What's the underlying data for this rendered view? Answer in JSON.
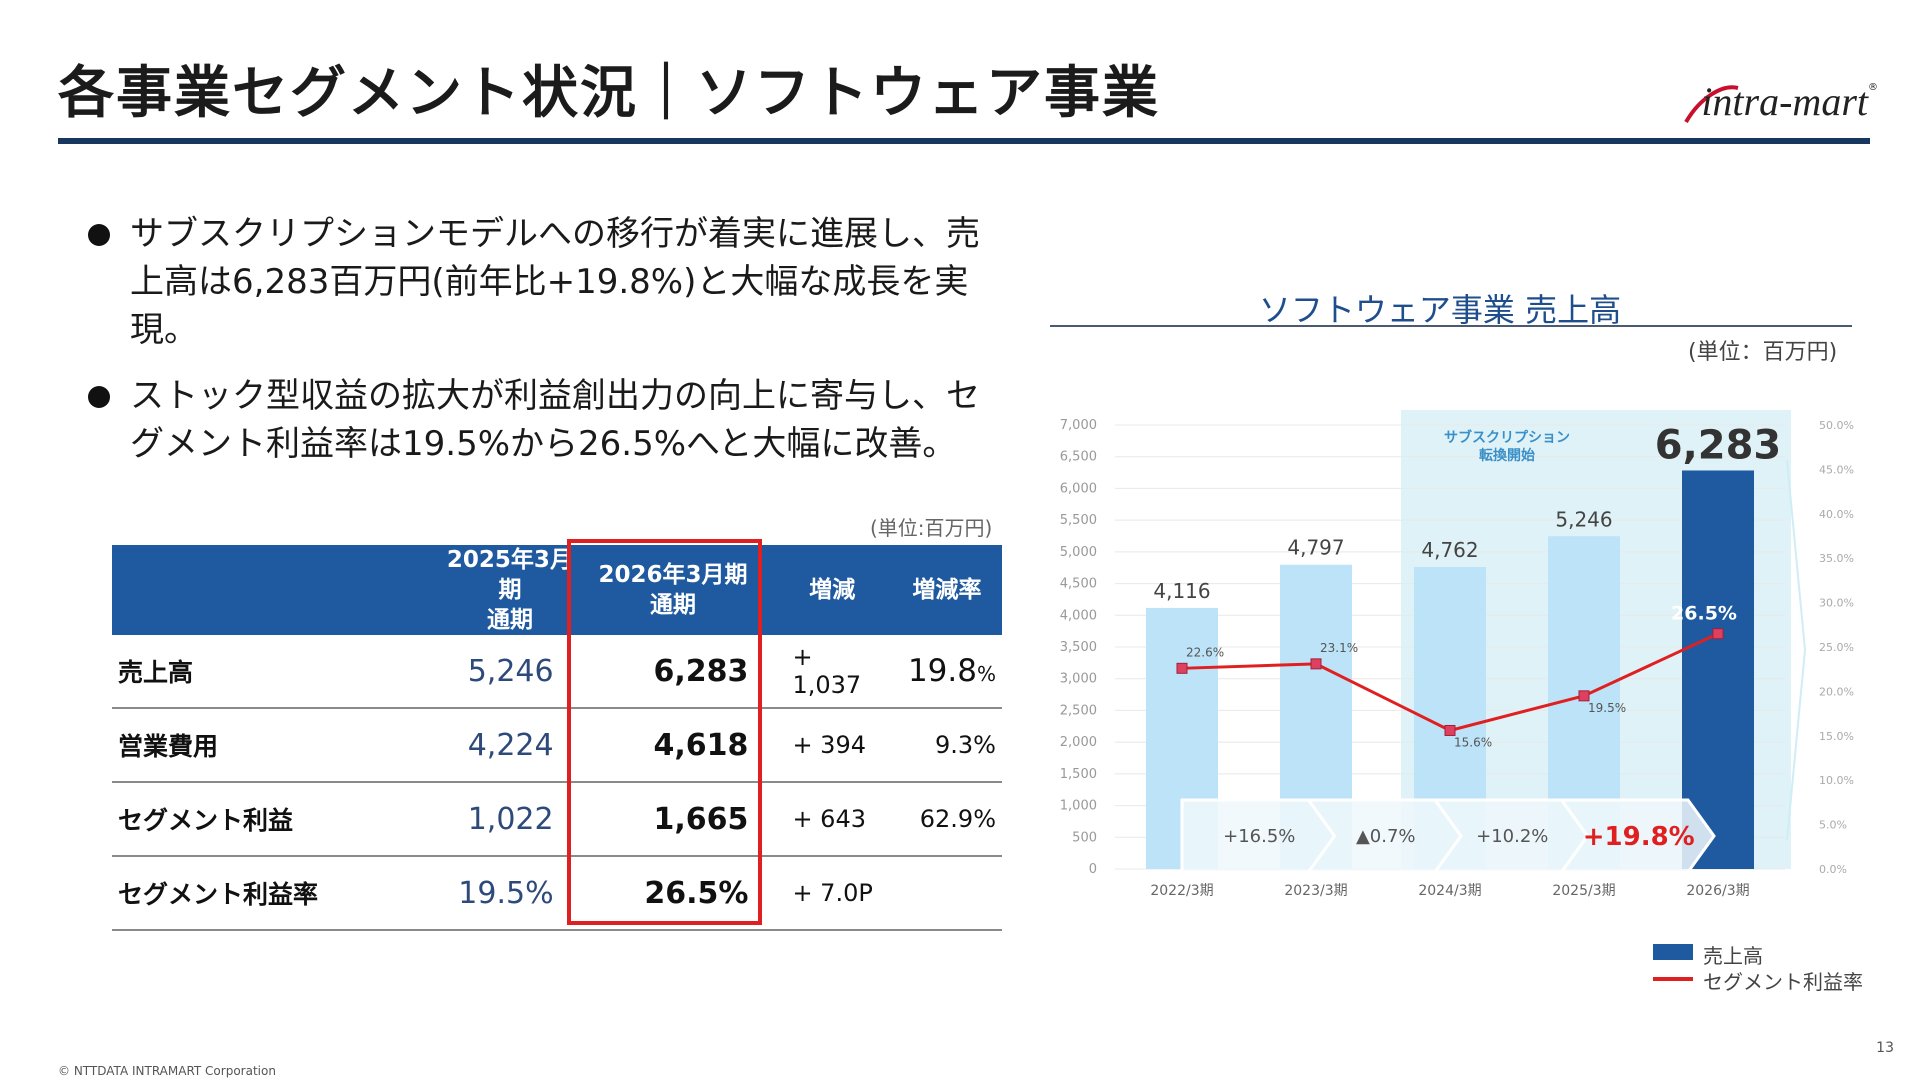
{
  "title": "各事業セグメント状況｜ソフトウェア事業",
  "logo": {
    "text": "intra-mart",
    "reg": "®"
  },
  "bullets": [
    "サブスクリプションモデルへの移行が着実に進展し、売上高は6,283百万円(前年比+19.8%)と大幅な成長を実現。",
    "ストック型収益の拡大が利益創出力の向上に寄与し、セグメント利益率は19.5%から26.5%へと大幅に改善。"
  ],
  "table": {
    "unit": "(単位:百万円)",
    "headers": {
      "prev": "2025年3月期\n通期",
      "cur": "2026年3月期\n通期",
      "diff": "増減",
      "rate": "増減率"
    },
    "rows": [
      {
        "label": "売上高",
        "prev": "5,246",
        "cur": "6,283",
        "diff": "+ 1,037",
        "rate": "19.8",
        "rate_unit": "%"
      },
      {
        "label": "営業費用",
        "prev": "4,224",
        "cur": "4,618",
        "diff": "+ 394",
        "rate": "9.3%",
        "rate_unit": ""
      },
      {
        "label": "セグメント利益",
        "prev": "1,022",
        "cur": "1,665",
        "diff": "+ 643",
        "rate": "62.9%",
        "rate_unit": ""
      },
      {
        "label": "セグメント利益率",
        "prev": "19.5%",
        "cur": "26.5%",
        "diff": "+ 7.0P",
        "rate": "",
        "rate_unit": ""
      }
    ]
  },
  "chart_title": "ソフトウェア事業 売上高",
  "chart_unit": "(単位：百万円)",
  "chart_data": {
    "type": "bar",
    "categories": [
      "2022/3期",
      "2023/3期",
      "2024/3期",
      "2025/3期",
      "2026/3期"
    ],
    "series": [
      {
        "name": "売上高",
        "type": "bar",
        "values": [
          4116,
          4797,
          4762,
          5246,
          6283
        ],
        "labels": [
          "4,116",
          "4,797",
          "4,762",
          "5,246",
          "6,283"
        ]
      },
      {
        "name": "セグメント利益率",
        "type": "line",
        "axis": "right",
        "values": [
          22.6,
          23.1,
          15.6,
          19.5,
          26.5
        ],
        "labels": [
          "22.6%",
          "23.1%",
          "15.6%",
          "19.5%",
          "26.5%"
        ]
      }
    ],
    "ylim": [
      0,
      7000
    ],
    "y_ticks": [
      "0",
      "500",
      "1,000",
      "1,500",
      "2,000",
      "2,500",
      "3,000",
      "3,500",
      "4,000",
      "4,500",
      "5,000",
      "5,500",
      "6,000",
      "6,500",
      "7,000"
    ],
    "y2lim": [
      0,
      50
    ],
    "y2_ticks": [
      "0.0%",
      "5.0%",
      "10.0%",
      "15.0%",
      "20.0%",
      "25.0%",
      "30.0%",
      "35.0%",
      "40.0%",
      "45.0%",
      "50.0%"
    ],
    "growth": [
      "+16.5%",
      "▲0.7%",
      "+10.2%",
      "+19.8%"
    ],
    "annotation": "サブスクリプション\n転換開始",
    "legend_position": "bottom-right",
    "colors": {
      "bar": "#bde3f8",
      "bar_highlight": "#1f5aa0",
      "line": "#e02020",
      "marker": "#e04060",
      "shade": "#dff2f7",
      "growth_highlight": "#e02020"
    }
  },
  "page_number": "13",
  "copyright": "© NTTDATA INTRAMART Corporation"
}
